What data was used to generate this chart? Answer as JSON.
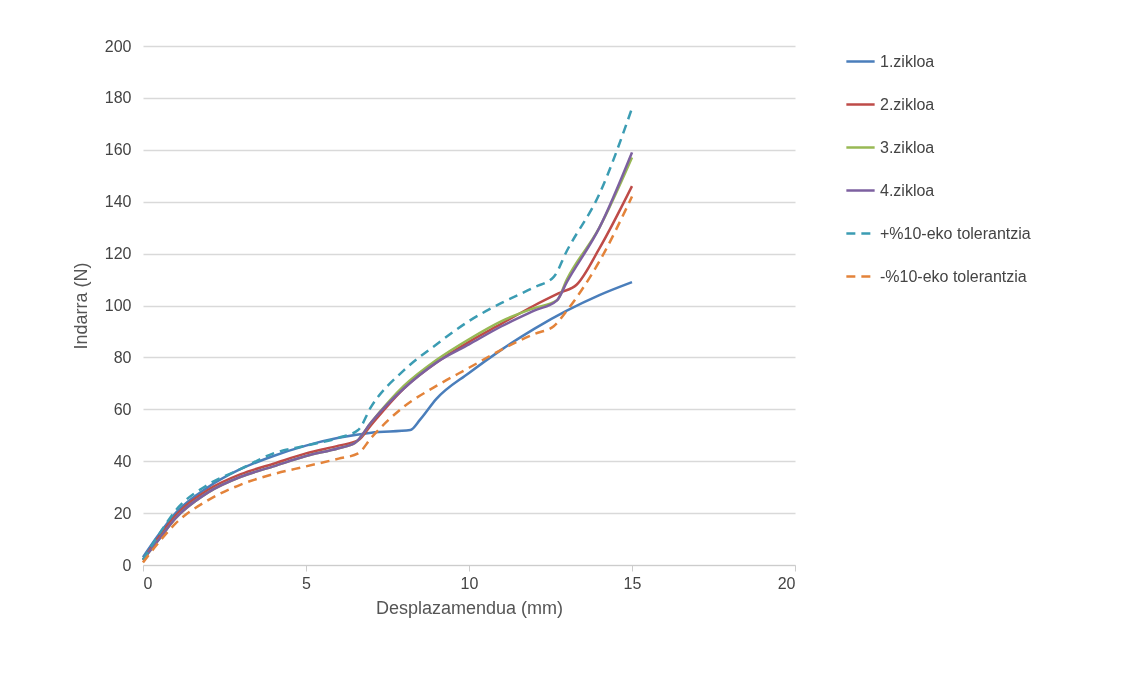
{
  "chart_data": {
    "type": "line",
    "xlabel": "Desplazamendua (mm)",
    "ylabel": "Indarra (N)",
    "xlim": [
      0,
      20
    ],
    "xticks": [
      0,
      5,
      10,
      15,
      20
    ],
    "ylim": [
      0,
      200
    ],
    "yticks": [
      0,
      20,
      40,
      60,
      80,
      100,
      120,
      140,
      160,
      180,
      200
    ],
    "grid": "y",
    "legend": "right",
    "marker": "none",
    "series": [
      {
        "name": "1.zikloa",
        "color": "#4a7ebb",
        "line_style": "solid",
        "x": [
          0,
          0.5,
          1,
          2,
          3,
          4,
          5,
          6,
          7,
          8.2,
          8.5,
          9,
          10,
          11,
          12,
          13,
          14,
          15
        ],
        "values": [
          3,
          12,
          20,
          30,
          37,
          42,
          46,
          49,
          51,
          52,
          56,
          64,
          74,
          83,
          91,
          98,
          104,
          109
        ]
      },
      {
        "name": "2.zikloa",
        "color": "#be4b48",
        "line_style": "solid",
        "x": [
          0,
          0.5,
          1,
          2,
          3,
          4,
          5,
          6,
          6.6,
          7,
          8,
          9,
          10,
          11,
          12,
          12.8,
          13.3,
          14,
          15
        ],
        "values": [
          2,
          11,
          19,
          29,
          35,
          39,
          43,
          46,
          48,
          54,
          68,
          78,
          86,
          93,
          100,
          105,
          108,
          122,
          146
        ]
      },
      {
        "name": "3.zikloa",
        "color": "#98b954",
        "line_style": "solid",
        "x": [
          0,
          0.5,
          1,
          2,
          3,
          4,
          5,
          6,
          6.5,
          7,
          8,
          9,
          10,
          11,
          12,
          12.7,
          13,
          14,
          15
        ],
        "values": [
          2,
          10,
          18,
          28,
          34,
          38,
          42,
          45,
          47,
          55,
          69,
          79,
          87,
          94,
          99,
          102,
          110,
          130,
          157
        ]
      },
      {
        "name": "4.zikloa",
        "color": "#7d60a0",
        "line_style": "solid",
        "x": [
          0,
          0.5,
          1,
          2,
          3,
          4,
          5,
          6,
          6.5,
          7,
          8,
          9,
          10,
          11,
          12,
          12.7,
          13,
          14,
          15
        ],
        "values": [
          2,
          10,
          18,
          28,
          34,
          38,
          42,
          45,
          47,
          55,
          68,
          78,
          85,
          92,
          98,
          102,
          109,
          130,
          159
        ]
      },
      {
        "name": "+%10-eko tolerantzia",
        "color": "#3b9cb3",
        "line_style": "dashed",
        "x": [
          0,
          0.5,
          1,
          2,
          3,
          4,
          5,
          6,
          6.6,
          7,
          8,
          9,
          10,
          11,
          12,
          12.6,
          13,
          14,
          15
        ],
        "values": [
          2,
          12,
          21,
          31,
          37,
          43,
          46,
          49,
          52,
          61,
          75,
          85,
          94,
          101,
          107,
          111,
          121,
          143,
          176
        ]
      },
      {
        "name": "-%10-eko tolerantzia",
        "color": "#e3833a",
        "line_style": "dashed",
        "x": [
          0,
          0.5,
          1,
          2,
          3,
          4,
          5,
          6,
          6.6,
          7,
          8,
          9,
          10,
          11,
          12,
          12.6,
          13,
          14,
          15
        ],
        "values": [
          1,
          9,
          16,
          25,
          31,
          35,
          38,
          41,
          43,
          49,
          61,
          69,
          76,
          83,
          89,
          92,
          98,
          117,
          142
        ]
      }
    ]
  }
}
